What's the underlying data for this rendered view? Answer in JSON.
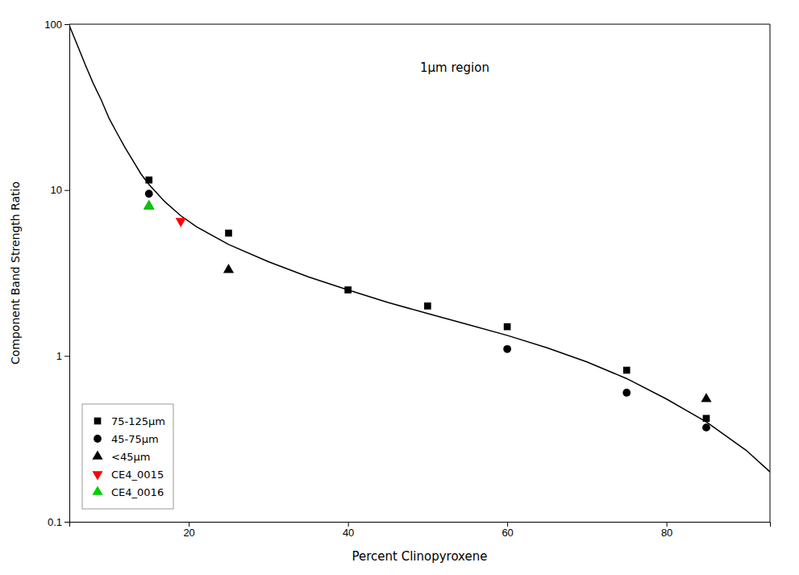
{
  "chart_data": {
    "type": "scatter",
    "annotations": [
      "1μm region"
    ],
    "xlabel": "Percent Clinopyroxene",
    "ylabel": "Component Band Strength Ratio",
    "xlim": [
      5,
      93
    ],
    "ylim": [
      0.1,
      100
    ],
    "xticks": [
      20,
      40,
      60,
      80
    ],
    "yticks": [
      0.1,
      1,
      10,
      100
    ],
    "log": "y",
    "grid": false,
    "legend": "lower left",
    "series": [
      {
        "type": "line",
        "color": "#000000",
        "line_style": "solid",
        "x": [
          5,
          6,
          7,
          8,
          9,
          10,
          11,
          12,
          13,
          14,
          15,
          17,
          19,
          21,
          25,
          30,
          35,
          40,
          45,
          50,
          55,
          60,
          65,
          70,
          75,
          80,
          85,
          90,
          93
        ],
        "values": [
          98,
          75,
          57,
          44,
          35,
          27,
          22,
          18,
          15,
          12.5,
          10.8,
          8.5,
          7.0,
          6.0,
          4.7,
          3.7,
          3.0,
          2.5,
          2.1,
          1.8,
          1.55,
          1.33,
          1.12,
          0.92,
          0.73,
          0.55,
          0.4,
          0.27,
          0.2
        ]
      },
      {
        "name": "75-125μm",
        "type": "scatter",
        "marker": "square",
        "color": "#000000",
        "x": [
          15,
          25,
          40,
          50,
          60,
          75,
          85
        ],
        "values": [
          11.5,
          5.5,
          2.5,
          2.0,
          1.5,
          0.82,
          0.42
        ]
      },
      {
        "name": "45-75μm",
        "type": "scatter",
        "marker": "circle",
        "color": "#000000",
        "x": [
          15,
          60,
          75,
          85
        ],
        "values": [
          9.5,
          1.1,
          0.6,
          0.37
        ]
      },
      {
        "name": "<45μm",
        "type": "scatter",
        "marker": "triangle-up",
        "color": "#000000",
        "x": [
          15,
          25,
          85
        ],
        "values": [
          8.0,
          3.3,
          0.55
        ]
      },
      {
        "name": "CE4_0015",
        "type": "scatter",
        "marker": "triangle-down",
        "color": "#ff0000",
        "x": [
          19
        ],
        "values": [
          6.5
        ]
      },
      {
        "name": "CE4_0016",
        "type": "scatter",
        "marker": "triangle-up",
        "color": "#00cc00",
        "x": [
          15
        ],
        "values": [
          8.0
        ]
      }
    ]
  }
}
